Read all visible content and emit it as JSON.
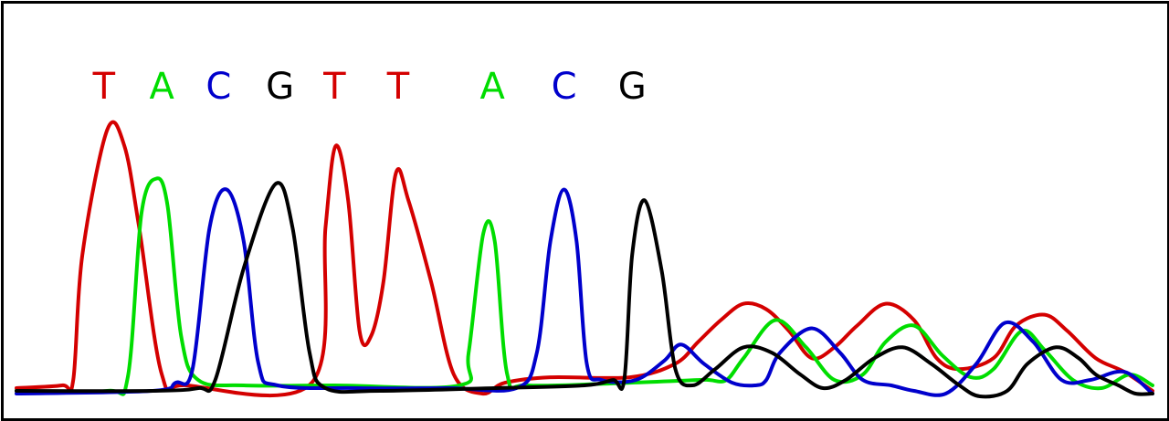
{
  "chart_data": {
    "type": "line",
    "x_range": [
      0,
      1000
    ],
    "y_range": [
      0,
      100
    ],
    "grid": false,
    "legend": "none",
    "base_calls": [
      {
        "base": "T",
        "x": 77,
        "color": "#d40000"
      },
      {
        "base": "A",
        "x": 128,
        "color": "#00dd00"
      },
      {
        "base": "C",
        "x": 178,
        "color": "#0000cc"
      },
      {
        "base": "G",
        "x": 232,
        "color": "#000000"
      },
      {
        "base": "T",
        "x": 280,
        "color": "#d40000"
      },
      {
        "base": "T",
        "x": 336,
        "color": "#d40000"
      },
      {
        "base": "A",
        "x": 419,
        "color": "#00dd00"
      },
      {
        "base": "C",
        "x": 482,
        "color": "#0000cc"
      },
      {
        "base": "G",
        "x": 542,
        "color": "#000000"
      }
    ],
    "series": [
      {
        "trace": "T",
        "color": "#d40000",
        "points": [
          [
            0,
            1
          ],
          [
            40,
            2
          ],
          [
            50,
            4
          ],
          [
            58,
            50
          ],
          [
            80,
            96
          ],
          [
            95,
            90
          ],
          [
            108,
            60
          ],
          [
            128,
            6
          ],
          [
            150,
            2
          ],
          [
            260,
            3
          ],
          [
            272,
            60
          ],
          [
            281,
            90
          ],
          [
            292,
            70
          ],
          [
            302,
            22
          ],
          [
            312,
            20
          ],
          [
            323,
            40
          ],
          [
            334,
            80
          ],
          [
            345,
            70
          ],
          [
            365,
            40
          ],
          [
            385,
            6
          ],
          [
            410,
            -1
          ],
          [
            430,
            3
          ],
          [
            470,
            5
          ],
          [
            540,
            5
          ],
          [
            580,
            10
          ],
          [
            600,
            18
          ],
          [
            620,
            26
          ],
          [
            640,
            32
          ],
          [
            660,
            30
          ],
          [
            680,
            22
          ],
          [
            700,
            12
          ],
          [
            720,
            16
          ],
          [
            740,
            24
          ],
          [
            765,
            32
          ],
          [
            790,
            26
          ],
          [
            810,
            12
          ],
          [
            830,
            8
          ],
          [
            860,
            12
          ],
          [
            880,
            24
          ],
          [
            905,
            28
          ],
          [
            925,
            22
          ],
          [
            950,
            12
          ],
          [
            975,
            7
          ],
          [
            1000,
            0
          ]
        ]
      },
      {
        "trace": "A",
        "color": "#00dd00",
        "points": [
          [
            0,
            0
          ],
          [
            80,
            0
          ],
          [
            98,
            5
          ],
          [
            110,
            65
          ],
          [
            123,
            78
          ],
          [
            133,
            68
          ],
          [
            145,
            20
          ],
          [
            160,
            4
          ],
          [
            200,
            2
          ],
          [
            280,
            2
          ],
          [
            390,
            2
          ],
          [
            398,
            14
          ],
          [
            411,
            58
          ],
          [
            421,
            55
          ],
          [
            432,
            6
          ],
          [
            450,
            2
          ],
          [
            540,
            3
          ],
          [
            600,
            4
          ],
          [
            610,
            4
          ],
          [
            625,
            4
          ],
          [
            640,
            12
          ],
          [
            668,
            26
          ],
          [
            695,
            16
          ],
          [
            720,
            4
          ],
          [
            745,
            6
          ],
          [
            765,
            18
          ],
          [
            790,
            24
          ],
          [
            815,
            13
          ],
          [
            840,
            5
          ],
          [
            860,
            8
          ],
          [
            885,
            22
          ],
          [
            905,
            15
          ],
          [
            930,
            4
          ],
          [
            955,
            1
          ],
          [
            980,
            6
          ],
          [
            1000,
            2
          ]
        ]
      },
      {
        "trace": "C",
        "color": "#0000cc",
        "points": [
          [
            0,
            -1
          ],
          [
            120,
            0
          ],
          [
            140,
            3
          ],
          [
            155,
            8
          ],
          [
            170,
            60
          ],
          [
            185,
            74
          ],
          [
            200,
            55
          ],
          [
            213,
            10
          ],
          [
            230,
            2
          ],
          [
            300,
            1
          ],
          [
            380,
            1
          ],
          [
            440,
            1
          ],
          [
            458,
            14
          ],
          [
            470,
            55
          ],
          [
            482,
            74
          ],
          [
            493,
            55
          ],
          [
            502,
            10
          ],
          [
            515,
            4
          ],
          [
            545,
            4
          ],
          [
            570,
            11
          ],
          [
            585,
            17
          ],
          [
            605,
            10
          ],
          [
            630,
            3
          ],
          [
            650,
            2
          ],
          [
            660,
            4
          ],
          [
            672,
            14
          ],
          [
            700,
            23
          ],
          [
            725,
            14
          ],
          [
            745,
            4
          ],
          [
            770,
            2
          ],
          [
            790,
            0
          ],
          [
            818,
            -1
          ],
          [
            845,
            10
          ],
          [
            870,
            25
          ],
          [
            895,
            18
          ],
          [
            920,
            4
          ],
          [
            945,
            4
          ],
          [
            975,
            7
          ],
          [
            1000,
            -1
          ]
        ]
      },
      {
        "trace": "G",
        "color": "#000000",
        "points": [
          [
            0,
            0
          ],
          [
            120,
            0
          ],
          [
            160,
            1
          ],
          [
            175,
            4
          ],
          [
            200,
            45
          ],
          [
            228,
            76
          ],
          [
            243,
            60
          ],
          [
            258,
            14
          ],
          [
            272,
            1
          ],
          [
            320,
            0
          ],
          [
            420,
            1
          ],
          [
            500,
            2
          ],
          [
            525,
            4
          ],
          [
            535,
            4
          ],
          [
            542,
            50
          ],
          [
            553,
            70
          ],
          [
            568,
            44
          ],
          [
            580,
            8
          ],
          [
            595,
            2
          ],
          [
            615,
            8
          ],
          [
            640,
            16
          ],
          [
            665,
            14
          ],
          [
            690,
            6
          ],
          [
            710,
            1
          ],
          [
            730,
            4
          ],
          [
            755,
            12
          ],
          [
            780,
            16
          ],
          [
            805,
            10
          ],
          [
            830,
            2
          ],
          [
            848,
            -2
          ],
          [
            872,
            0
          ],
          [
            890,
            10
          ],
          [
            915,
            16
          ],
          [
            935,
            12
          ],
          [
            950,
            6
          ],
          [
            970,
            2
          ],
          [
            985,
            -1
          ],
          [
            1000,
            -1
          ]
        ]
      }
    ]
  }
}
